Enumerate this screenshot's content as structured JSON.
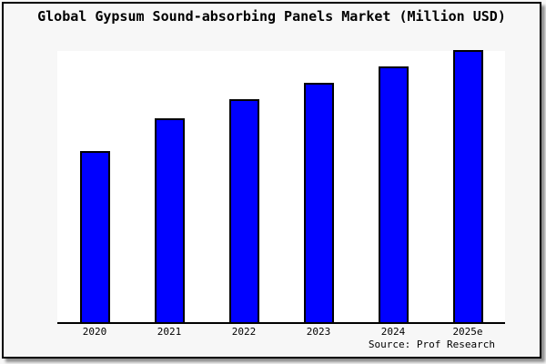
{
  "title": "Global Gypsum Sound-absorbing Panels Market (Million USD)",
  "source_note": "Source: Prof Research",
  "colors": {
    "bar_fill": "#0000ff",
    "bar_outline": "#000000",
    "plot_background": "#ffffff",
    "panel_background": "#f7f7f7",
    "border": "#000000",
    "shadow": "#8f8f8f"
  },
  "chart_data": {
    "type": "bar",
    "title": "Global Gypsum Sound-absorbing Panels Market (Million USD)",
    "categories": [
      "2020",
      "2021",
      "2022",
      "2023",
      "2024",
      "2025e"
    ],
    "values": [
      63,
      75,
      82,
      88,
      94,
      100
    ],
    "values_note": "No y-axis or data labels shown in chart; values are relative bar heights indexed to 2025e = 100",
    "xlabel": "",
    "ylabel": "",
    "ylim": [
      0,
      100
    ],
    "grid": false,
    "legend": false,
    "source": "Source: Prof Research"
  }
}
